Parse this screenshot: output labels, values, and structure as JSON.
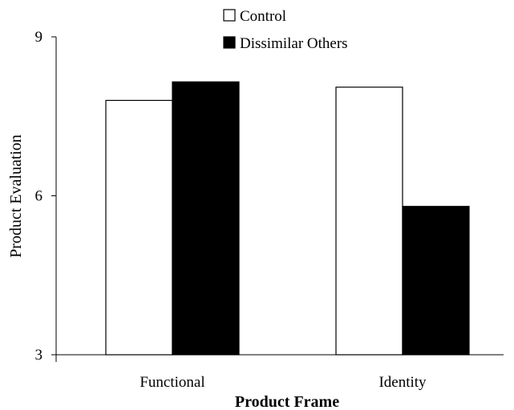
{
  "chart_data": {
    "type": "bar",
    "title": "",
    "xlabel": "Product Frame",
    "ylabel": "Product Evaluation",
    "categories": [
      "Functional",
      "Identity"
    ],
    "series": [
      {
        "name": "Control",
        "values": [
          7.8,
          8.05
        ],
        "color": "#ffffff"
      },
      {
        "name": "Dissimilar Others",
        "values": [
          8.15,
          5.8
        ],
        "color": "#000000"
      }
    ],
    "ylim": [
      3,
      9
    ],
    "yticks": [
      3,
      6,
      9
    ],
    "ytick_labels": [
      "3",
      "6",
      "9"
    ],
    "grid": false,
    "legend_position": "top"
  }
}
